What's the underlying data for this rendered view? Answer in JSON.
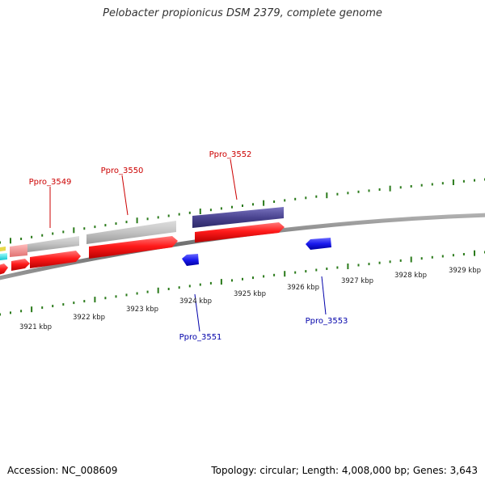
{
  "title": "Pelobacter propionicus DSM 2379, complete genome",
  "footer": {
    "accession": "Accession: NC_008609",
    "stats": "Topology: circular; Length: 4,008,000 bp; Genes: 3,643"
  },
  "scale_labels": [
    "3921 kbp",
    "3922 kbp",
    "3923 kbp",
    "3924 kbp",
    "3925 kbp",
    "3926 kbp",
    "3927 kbp",
    "3928 kbp",
    "3929 kbp"
  ],
  "gene_labels": {
    "ppro_3549": "Ppro_3549",
    "ppro_3550": "Ppro_3550",
    "ppro_3551": "Ppro_3551",
    "ppro_3552": "Ppro_3552",
    "ppro_3553": "Ppro_3553"
  },
  "colors": {
    "forward_cds": "#ee1111",
    "reverse_cds": "#1515dd",
    "forward_label": "#cc0000",
    "reverse_label": "#0000aa",
    "grey_feature": "#bbbbbb",
    "purple_feature": "#4a4490",
    "tick_green": "#2a7a1a",
    "backbone": "#888888"
  }
}
